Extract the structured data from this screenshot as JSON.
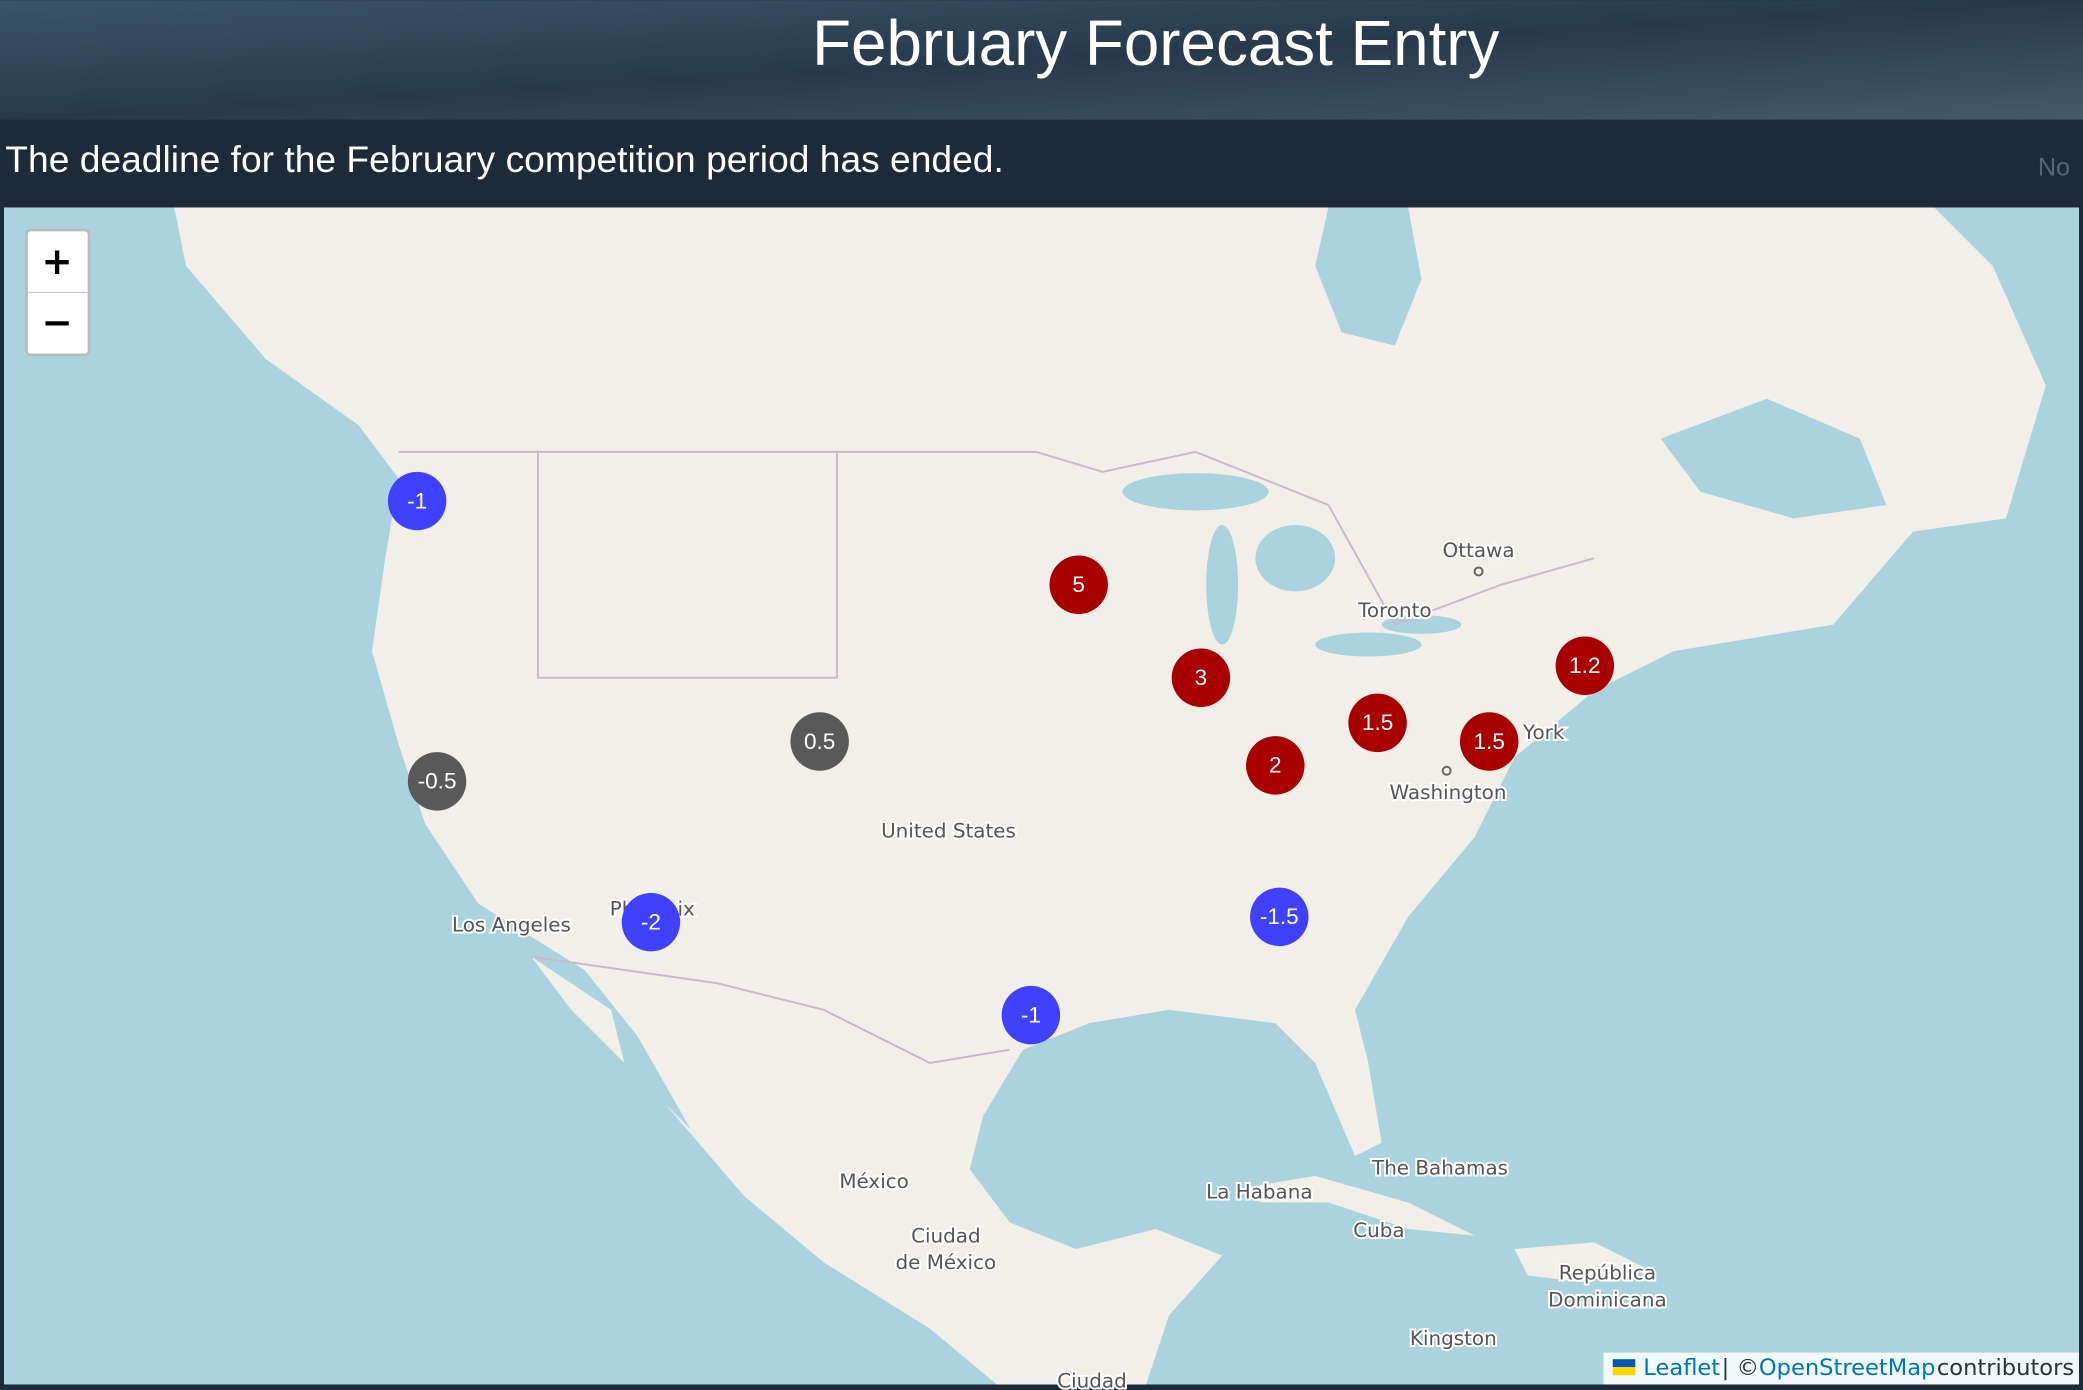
{
  "header": {
    "title": "February Forecast Entry"
  },
  "notice": {
    "text": "The deadline for the February competition period has ended.",
    "side_text": "No"
  },
  "map": {
    "zoom_in": "+",
    "zoom_out": "−",
    "places": [
      "Ottawa",
      "Toronto",
      "York",
      "Washington",
      "United States",
      "Los Angeles",
      "Ph",
      "ix",
      "México",
      "Ciudad",
      "de México",
      "La Habana",
      "The Bahamas",
      "Cuba",
      "República",
      "Dominicana",
      "Kingston",
      "Ciudad"
    ],
    "markers": [
      {
        "label": "-1",
        "color": "#4040ff"
      },
      {
        "label": "5",
        "color": "#a80000"
      },
      {
        "label": "3",
        "color": "#a80000"
      },
      {
        "label": "1.2",
        "color": "#a80000"
      },
      {
        "label": "1.5",
        "color": "#a80000"
      },
      {
        "label": "1.5",
        "color": "#a80000"
      },
      {
        "label": "2",
        "color": "#a80000"
      },
      {
        "label": "0.5",
        "color": "#595959"
      },
      {
        "label": "-0.5",
        "color": "#595959"
      },
      {
        "label": "-2",
        "color": "#4040ff"
      },
      {
        "label": "-1.5",
        "color": "#4040ff"
      },
      {
        "label": "-1",
        "color": "#4040ff"
      }
    ],
    "attribution": {
      "leaflet": "Leaflet",
      "separator": "| ©",
      "osm": "OpenStreetMap",
      "suffix": "contributors"
    }
  }
}
